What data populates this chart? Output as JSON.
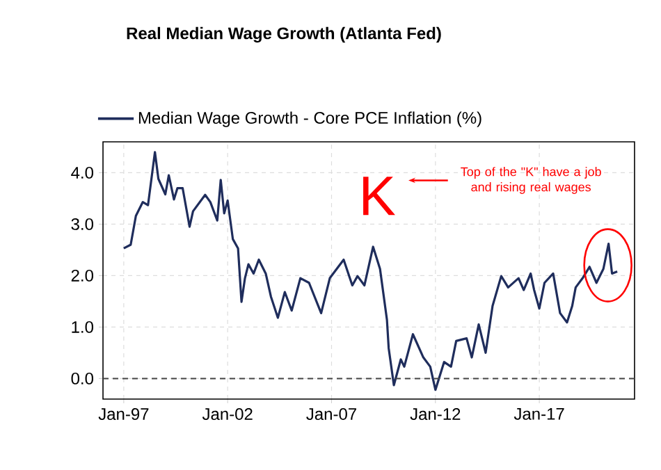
{
  "chart_data": {
    "type": "line",
    "title": "Real Median Wage Growth (Atlanta Fed)",
    "x": [
      "1997-01",
      "1997-05",
      "1997-08",
      "1997-12",
      "1998-03",
      "1998-07",
      "1998-09",
      "1999-01",
      "1999-03",
      "1999-06",
      "1999-08",
      "1999-11",
      "2000-03",
      "2000-05",
      "2000-12",
      "2001-03",
      "2001-07",
      "2001-09",
      "2001-11",
      "2002-01",
      "2002-04",
      "2002-07",
      "2002-09",
      "2002-11",
      "2003-01",
      "2003-04",
      "2003-07",
      "2003-11",
      "2004-02",
      "2004-06",
      "2004-10",
      "2005-02",
      "2005-07",
      "2005-12",
      "2006-07",
      "2006-12",
      "2007-08",
      "2008-01",
      "2008-04",
      "2008-08",
      "2009-01",
      "2009-05",
      "2009-09",
      "2009-10",
      "2010-01",
      "2010-05",
      "2010-07",
      "2010-12",
      "2011-06",
      "2011-10",
      "2012-01",
      "2012-06",
      "2012-10",
      "2013-01",
      "2013-07",
      "2013-10",
      "2014-02",
      "2014-06",
      "2014-10",
      "2015-03",
      "2015-07",
      "2016-01",
      "2016-04",
      "2016-08",
      "2016-10",
      "2017-01",
      "2017-04",
      "2017-09",
      "2018-01",
      "2018-05",
      "2018-08",
      "2018-10",
      "2019-02",
      "2019-06",
      "2019-10",
      "2020-02",
      "2020-05",
      "2020-07",
      "2020-10"
    ],
    "series": [
      {
        "name": "Median Wage Growth - Core PCE Inflation (%)",
        "color": "#1f2d5c",
        "values": [
          2.53,
          2.6,
          3.16,
          3.43,
          3.37,
          4.4,
          3.88,
          3.58,
          3.95,
          3.48,
          3.7,
          3.7,
          2.95,
          3.25,
          3.57,
          3.43,
          3.07,
          3.86,
          3.21,
          3.46,
          2.71,
          2.53,
          1.49,
          1.95,
          2.22,
          2.04,
          2.31,
          2.04,
          1.59,
          1.18,
          1.68,
          1.32,
          1.95,
          1.86,
          1.27,
          1.95,
          2.31,
          1.81,
          1.99,
          1.81,
          2.56,
          2.13,
          1.14,
          0.59,
          -0.13,
          0.37,
          0.23,
          0.86,
          0.41,
          0.23,
          -0.22,
          0.32,
          0.23,
          0.73,
          0.78,
          0.41,
          1.05,
          0.5,
          1.41,
          1.99,
          1.77,
          1.95,
          1.72,
          2.04,
          1.72,
          1.36,
          1.86,
          2.04,
          1.27,
          1.09,
          1.41,
          1.77,
          1.95,
          2.17,
          1.86,
          2.13,
          2.62,
          2.04,
          2.08
        ]
      }
    ],
    "xlim": [
      "1996-01",
      "2021-08"
    ],
    "xticks": [
      {
        "value": "1997-01",
        "label": "Jan-97"
      },
      {
        "value": "2002-01",
        "label": "Jan-02"
      },
      {
        "value": "2007-01",
        "label": "Jan-07"
      },
      {
        "value": "2012-01",
        "label": "Jan-12"
      },
      {
        "value": "2017-01",
        "label": "Jan-17"
      }
    ],
    "ylim": [
      -0.4,
      4.6
    ],
    "yticks": [
      {
        "value": 0,
        "label": "0.0"
      },
      {
        "value": 1,
        "label": "1.0"
      },
      {
        "value": 2,
        "label": "2.0"
      },
      {
        "value": 3,
        "label": "3.0"
      },
      {
        "value": 4,
        "label": "4.0"
      }
    ],
    "grid": true,
    "legend": "top",
    "line_style": "solid",
    "ref_lines": [
      {
        "axis": "y",
        "value": 0,
        "color": "#444444",
        "line_style": "dashed"
      }
    ],
    "annotations": [
      "K",
      "Top of the \"K\" have a job and rising real wages"
    ]
  }
}
